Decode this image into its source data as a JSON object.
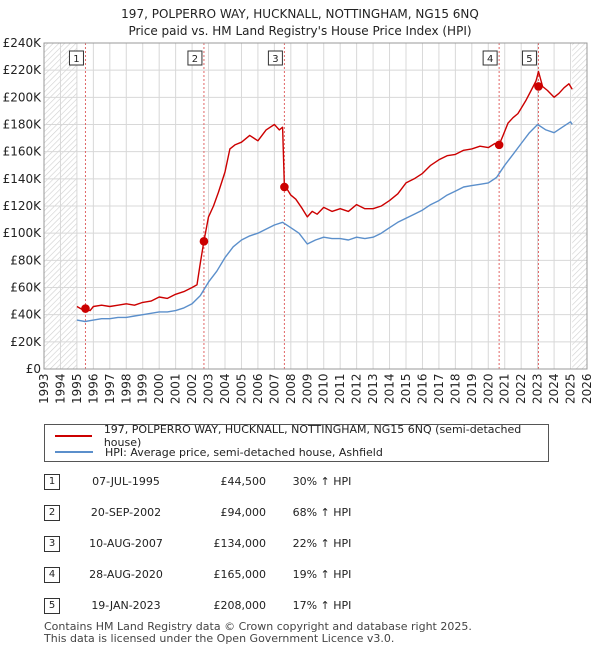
{
  "title_line1": "197, POLPERRO WAY, HUCKNALL, NOTTINGHAM, NG15 6NQ",
  "title_line2": "Price paid vs. HM Land Registry's House Price Index (HPI)",
  "colors": {
    "property": "#cc0000",
    "hpi": "#5b8fcb",
    "grid": "#d8d8d8",
    "band": "#e6e6e6"
  },
  "legend": {
    "property_label": "197, POLPERRO WAY, HUCKNALL, NOTTINGHAM, NG15 6NQ (semi-detached house)",
    "hpi_label": "HPI: Average price, semi-detached house, Ashfield"
  },
  "sales": [
    {
      "num": "1",
      "date": "07-JUL-1995",
      "price": "£44,500",
      "hpi": "30% ↑ HPI"
    },
    {
      "num": "2",
      "date": "20-SEP-2002",
      "price": "£94,000",
      "hpi": "68% ↑ HPI"
    },
    {
      "num": "3",
      "date": "10-AUG-2007",
      "price": "£134,000",
      "hpi": "22% ↑ HPI"
    },
    {
      "num": "4",
      "date": "28-AUG-2020",
      "price": "£165,000",
      "hpi": "19% ↑ HPI"
    },
    {
      "num": "5",
      "date": "19-JAN-2023",
      "price": "£208,000",
      "hpi": "17% ↑ HPI"
    }
  ],
  "footer_line1": "Contains HM Land Registry data © Crown copyright and database right 2025.",
  "footer_line2": "This data is licensed under the Open Government Licence v3.0.",
  "chart_data": {
    "type": "line",
    "title": "197, POLPERRO WAY, HUCKNALL, NOTTINGHAM, NG15 6NQ — Price paid vs. HM Land Registry's House Price Index (HPI)",
    "xlim": [
      1993,
      2026
    ],
    "ylim": [
      0,
      240000
    ],
    "x_ticks": [
      1993,
      1994,
      1995,
      1996,
      1997,
      1998,
      1999,
      2000,
      2001,
      2002,
      2003,
      2004,
      2005,
      2006,
      2007,
      2008,
      2009,
      2010,
      2011,
      2012,
      2013,
      2014,
      2015,
      2016,
      2017,
      2018,
      2019,
      2020,
      2021,
      2022,
      2023,
      2024,
      2025,
      2026
    ],
    "y_ticks": [
      {
        "value": 0,
        "label": "£0"
      },
      {
        "value": 20000,
        "label": "£20K"
      },
      {
        "value": 40000,
        "label": "£40K"
      },
      {
        "value": 60000,
        "label": "£60K"
      },
      {
        "value": 80000,
        "label": "£80K"
      },
      {
        "value": 100000,
        "label": "£100K"
      },
      {
        "value": 120000,
        "label": "£120K"
      },
      {
        "value": 140000,
        "label": "£140K"
      },
      {
        "value": 160000,
        "label": "£160K"
      },
      {
        "value": 180000,
        "label": "£180K"
      },
      {
        "value": 200000,
        "label": "£200K"
      },
      {
        "value": 220000,
        "label": "£220K"
      },
      {
        "value": 240000,
        "label": "£240K"
      }
    ],
    "hatched_ranges": [
      [
        1993,
        1995.0
      ],
      [
        2025.1,
        2026
      ]
    ],
    "grid": true,
    "series": [
      {
        "name": "197, POLPERRO WAY, HUCKNALL, NOTTINGHAM, NG15 6NQ (semi-detached house)",
        "color": "#cc0000",
        "x": [
          1995.0,
          1995.3,
          1995.52,
          1995.8,
          1996.0,
          1996.5,
          1997.0,
          1997.5,
          1998.0,
          1998.5,
          1999.0,
          1999.5,
          2000.0,
          2000.5,
          2001.0,
          2001.5,
          2002.0,
          2002.3,
          2002.5,
          2002.72,
          2003.0,
          2003.3,
          2003.6,
          2004.0,
          2004.3,
          2004.6,
          2005.0,
          2005.5,
          2006.0,
          2006.5,
          2007.0,
          2007.3,
          2007.5,
          2007.61,
          2007.8,
          2008.0,
          2008.3,
          2008.7,
          2009.0,
          2009.3,
          2009.6,
          2010.0,
          2010.5,
          2011.0,
          2011.5,
          2012.0,
          2012.5,
          2013.0,
          2013.5,
          2014.0,
          2014.5,
          2015.0,
          2015.5,
          2016.0,
          2016.5,
          2017.0,
          2017.5,
          2018.0,
          2018.5,
          2019.0,
          2019.5,
          2020.0,
          2020.4,
          2020.66,
          2020.9,
          2021.2,
          2021.5,
          2021.8,
          2022.0,
          2022.3,
          2022.6,
          2022.9,
          2023.05,
          2023.3,
          2023.6,
          2024.0,
          2024.3,
          2024.6,
          2024.9,
          2025.1
        ],
        "values": [
          46000,
          44000,
          44500,
          43000,
          46000,
          47000,
          46000,
          47000,
          48000,
          47000,
          49000,
          50000,
          53000,
          52000,
          55000,
          57000,
          60000,
          62000,
          78000,
          94000,
          112000,
          120000,
          130000,
          145000,
          162000,
          165000,
          167000,
          172000,
          168000,
          176000,
          180000,
          176000,
          178000,
          134000,
          132000,
          128000,
          125000,
          118000,
          112000,
          116000,
          114000,
          119000,
          116000,
          118000,
          116000,
          121000,
          118000,
          118000,
          120000,
          124000,
          129000,
          137000,
          140000,
          144000,
          150000,
          154000,
          157000,
          158000,
          161000,
          162000,
          164000,
          163000,
          166000,
          165000,
          172000,
          181000,
          185000,
          188000,
          192000,
          198000,
          205000,
          212000,
          219000,
          208000,
          205000,
          200000,
          203000,
          207000,
          210000,
          206000
        ]
      },
      {
        "name": "HPI: Average price, semi-detached house, Ashfield",
        "color": "#5b8fcb",
        "x": [
          1995.0,
          1995.5,
          1996.0,
          1996.5,
          1997.0,
          1997.5,
          1998.0,
          1998.5,
          1999.0,
          1999.5,
          2000.0,
          2000.5,
          2001.0,
          2001.5,
          2002.0,
          2002.5,
          2003.0,
          2003.5,
          2004.0,
          2004.5,
          2005.0,
          2005.5,
          2006.0,
          2006.5,
          2007.0,
          2007.5,
          2008.0,
          2008.5,
          2009.0,
          2009.5,
          2010.0,
          2010.5,
          2011.0,
          2011.5,
          2012.0,
          2012.5,
          2013.0,
          2013.5,
          2014.0,
          2014.5,
          2015.0,
          2015.5,
          2016.0,
          2016.5,
          2017.0,
          2017.5,
          2018.0,
          2018.5,
          2019.0,
          2019.5,
          2020.0,
          2020.5,
          2021.0,
          2021.5,
          2022.0,
          2022.5,
          2023.0,
          2023.5,
          2024.0,
          2024.5,
          2025.0,
          2025.1
        ],
        "values": [
          36000,
          35000,
          36000,
          37000,
          37000,
          38000,
          38000,
          39000,
          40000,
          41000,
          42000,
          42000,
          43000,
          45000,
          48000,
          54000,
          64000,
          72000,
          82000,
          90000,
          95000,
          98000,
          100000,
          103000,
          106000,
          108000,
          104000,
          100000,
          92000,
          95000,
          97000,
          96000,
          96000,
          95000,
          97000,
          96000,
          97000,
          100000,
          104000,
          108000,
          111000,
          114000,
          117000,
          121000,
          124000,
          128000,
          131000,
          134000,
          135000,
          136000,
          137000,
          141000,
          150000,
          158000,
          166000,
          174000,
          180000,
          176000,
          174000,
          178000,
          182000,
          180000
        ]
      }
    ],
    "sale_markers": [
      {
        "label": "1",
        "x": 1995.52,
        "value": 44500
      },
      {
        "label": "2",
        "x": 2002.72,
        "value": 94000
      },
      {
        "label": "3",
        "x": 2007.61,
        "value": 134000
      },
      {
        "label": "4",
        "x": 2020.66,
        "value": 165000
      },
      {
        "label": "5",
        "x": 2023.05,
        "value": 208000
      }
    ]
  }
}
